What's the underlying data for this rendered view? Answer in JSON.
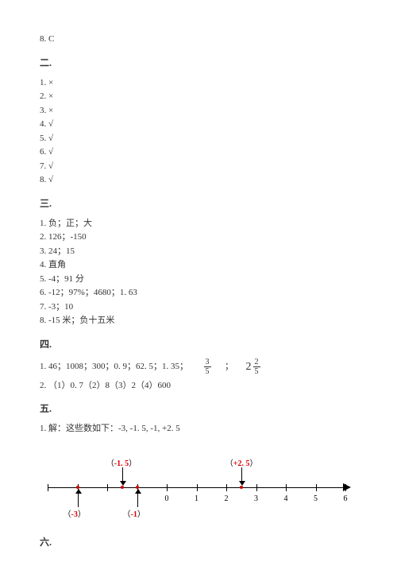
{
  "top_line": "8. C",
  "sections": {
    "s2": {
      "header": "二.",
      "lines": [
        "1. ×",
        "2. ×",
        "3. ×",
        "4. √",
        "5. √",
        "6. √",
        "7. √",
        "8. √"
      ]
    },
    "s3": {
      "header": "三.",
      "lines": [
        "1. 负；正；大",
        "2. 126；-150",
        "3. 24；15",
        "4. 直角",
        "5. -4；91 分",
        "6. -12；97%；4680；1. 63",
        "7. -3；10",
        "8. -15 米；负十五米"
      ]
    },
    "s4": {
      "header": "四.",
      "row1_prefix": "1. 46；1008；300；0. 9；62. 5；1. 35；",
      "frac1_num": "3",
      "frac1_den": "5",
      "sep1": "；",
      "mixed_whole": "2",
      "mixed_num": "2",
      "mixed_den": "5",
      "row2": "2. （1）0. 7（2）8（3）2（4）600"
    },
    "s5": {
      "header": "五.",
      "line1": "1. 解：这些数如下：-3, -1. 5, -1, +2. 5",
      "numberline": {
        "domain": [
          -4,
          6
        ],
        "ticks": [
          -4,
          -3,
          -2,
          -1,
          0,
          1,
          2,
          3,
          4,
          5,
          6
        ],
        "tick_labels": [
          "",
          "",
          "",
          "",
          "0",
          "1",
          "2",
          "3",
          "4",
          "5",
          "6"
        ],
        "points": [
          {
            "value": -3,
            "label": "-3",
            "paren": true,
            "position": "below",
            "color": "#d00"
          },
          {
            "value": -1.5,
            "label": "-1. 5",
            "paren": true,
            "position": "above",
            "color": "#d00"
          },
          {
            "value": -1,
            "label": "-1",
            "paren": true,
            "position": "below",
            "color": "#d00"
          },
          {
            "value": 2.5,
            "label": "+2. 5",
            "paren": true,
            "position": "above",
            "color": "#d00"
          }
        ],
        "axis_color": "#000000",
        "dot_color": "#d00000",
        "label_red": "#d00000",
        "font_size_labels": 10
      }
    },
    "s6": {
      "header": "六."
    }
  }
}
